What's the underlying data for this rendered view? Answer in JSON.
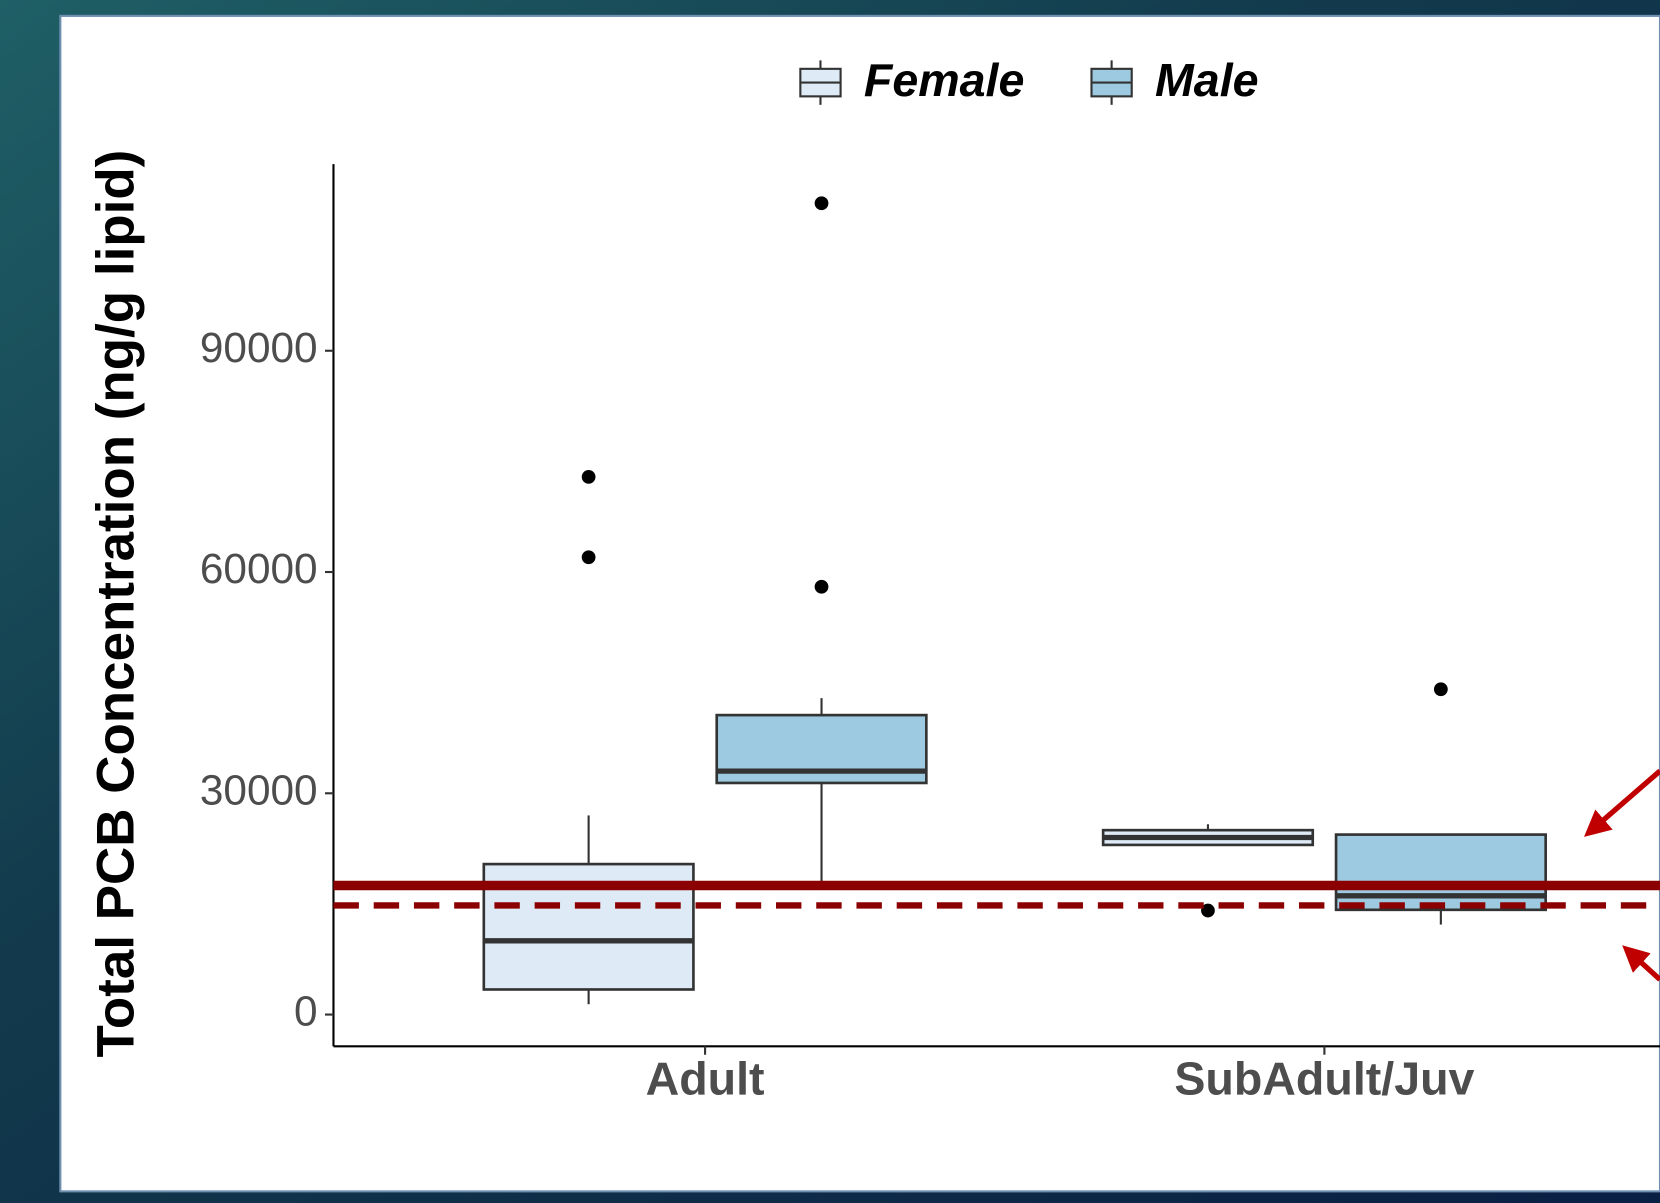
{
  "chart_data": {
    "type": "boxplot",
    "y_label": "Total PCB Concentration (ng/g lipid)",
    "categories": [
      "Adult",
      "SubAdult/Juv"
    ],
    "ylim": [
      -4300,
      115300
    ],
    "yticks": [
      0,
      30000,
      60000,
      90000
    ],
    "grid": false,
    "legend": "top",
    "series": [
      {
        "name": "Female",
        "color": "#deebf7",
        "values": [
          {
            "min": 1400,
            "q1": 3400,
            "median": 10000,
            "q3": 20400,
            "max": 27000,
            "outliers": [
              72900,
              62000
            ]
          },
          {
            "min": 23000,
            "q1": 23000,
            "median": 24000,
            "q3": 25000,
            "max": 25800,
            "outliers": [
              14100
            ]
          }
        ]
      },
      {
        "name": "Male",
        "color": "#9ecae1",
        "values": [
          {
            "min": 16900,
            "q1": 31400,
            "median": 33000,
            "q3": 40600,
            "max": 42900,
            "outliers": [
              110000,
              58000
            ]
          },
          {
            "min": 12200,
            "q1": 14200,
            "median": 16100,
            "q3": 24400,
            "max": 24400,
            "outliers": [
              44100
            ]
          }
        ]
      }
    ],
    "reference_lines": [
      {
        "value": 17500,
        "style": "solid",
        "color": "#8b0000"
      },
      {
        "value": 14800,
        "style": "dashed",
        "color": "#8b0000"
      }
    ]
  }
}
